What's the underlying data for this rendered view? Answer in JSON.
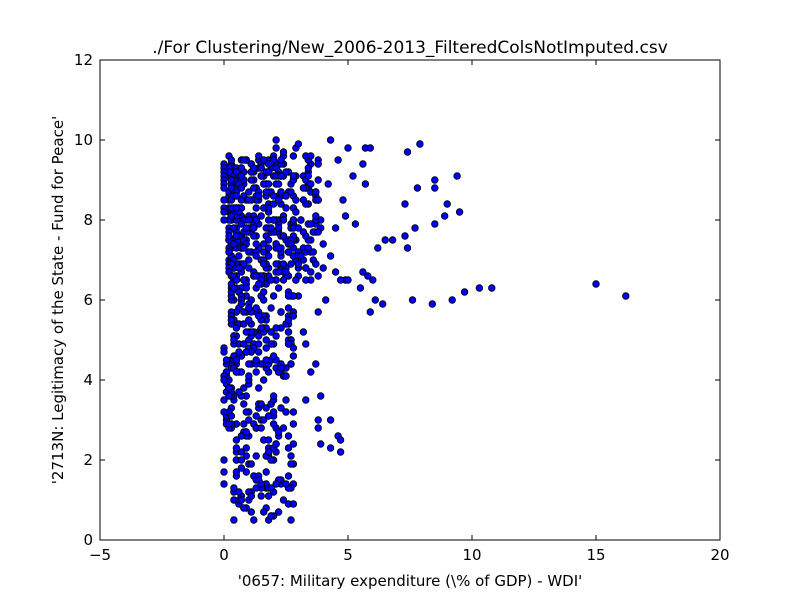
{
  "chart_data": {
    "type": "scatter",
    "title": "./For Clustering/New_2006-2013_FilteredColsNotImputed.csv",
    "xlabel": "'0657: Military expenditure  (\\% of GDP) - WDI'",
    "ylabel": "'2713N: Legitimacy of the State - Fund for Peace'",
    "xlim": [
      -5,
      20
    ],
    "ylim": [
      0,
      12
    ],
    "xticks": [
      "−5",
      "0",
      "5",
      "10",
      "15",
      "20"
    ],
    "yticks": [
      "0",
      "2",
      "4",
      "6",
      "8",
      "10",
      "12"
    ],
    "grid": false,
    "marker_color": "#0000ff",
    "marker_edge": "#000000",
    "outliers": [
      {
        "x": 15.0,
        "y": 6.4
      },
      {
        "x": 16.2,
        "y": 6.1
      },
      {
        "x": 10.8,
        "y": 6.3
      },
      {
        "x": 10.3,
        "y": 6.3
      },
      {
        "x": 9.7,
        "y": 6.2
      },
      {
        "x": 9.2,
        "y": 6.0
      },
      {
        "x": 8.4,
        "y": 5.9
      },
      {
        "x": 7.6,
        "y": 6.0
      },
      {
        "x": 6.4,
        "y": 5.9
      },
      {
        "x": 6.1,
        "y": 6.0
      },
      {
        "x": 5.9,
        "y": 5.7
      },
      {
        "x": 6.0,
        "y": 6.5
      },
      {
        "x": 5.6,
        "y": 6.7
      },
      {
        "x": 5.8,
        "y": 6.6
      },
      {
        "x": 5.5,
        "y": 6.3
      },
      {
        "x": 6.2,
        "y": 7.3
      },
      {
        "x": 6.5,
        "y": 7.5
      },
      {
        "x": 6.8,
        "y": 7.5
      },
      {
        "x": 7.4,
        "y": 7.3
      },
      {
        "x": 7.3,
        "y": 7.6
      },
      {
        "x": 7.7,
        "y": 7.8
      },
      {
        "x": 7.3,
        "y": 8.4
      },
      {
        "x": 7.8,
        "y": 8.8
      },
      {
        "x": 8.5,
        "y": 7.9
      },
      {
        "x": 8.9,
        "y": 8.1
      },
      {
        "x": 9.0,
        "y": 8.4
      },
      {
        "x": 9.5,
        "y": 8.2
      },
      {
        "x": 8.5,
        "y": 8.8
      },
      {
        "x": 8.5,
        "y": 9.0
      },
      {
        "x": 9.4,
        "y": 9.1
      },
      {
        "x": 7.9,
        "y": 9.9
      },
      {
        "x": 7.4,
        "y": 9.7
      },
      {
        "x": 5.7,
        "y": 9.8
      },
      {
        "x": 5.9,
        "y": 9.8
      },
      {
        "x": 5.0,
        "y": 9.8
      },
      {
        "x": 4.3,
        "y": 10.0
      },
      {
        "x": 5.6,
        "y": 9.4
      },
      {
        "x": 5.2,
        "y": 9.1
      },
      {
        "x": 5.7,
        "y": 8.9
      },
      {
        "x": 5.3,
        "y": 7.9
      },
      {
        "x": 4.9,
        "y": 6.5
      },
      {
        "x": 5.0,
        "y": 6.5
      },
      {
        "x": 4.7,
        "y": 6.5
      },
      {
        "x": 4.1,
        "y": 6.0
      },
      {
        "x": 3.8,
        "y": 5.7
      },
      {
        "x": 3.9,
        "y": 3.6
      },
      {
        "x": 3.8,
        "y": 3.0
      },
      {
        "x": 3.8,
        "y": 2.8
      },
      {
        "x": 4.3,
        "y": 3.0
      },
      {
        "x": 3.9,
        "y": 2.4
      },
      {
        "x": 4.3,
        "y": 2.3
      },
      {
        "x": 4.6,
        "y": 2.6
      },
      {
        "x": 4.7,
        "y": 2.5
      },
      {
        "x": 4.7,
        "y": 2.2
      },
      {
        "x": 3.3,
        "y": 3.5
      },
      {
        "x": 2.8,
        "y": 3.2
      },
      {
        "x": 3.5,
        "y": 4.2
      },
      {
        "x": 3.7,
        "y": 4.4
      },
      {
        "x": 3.3,
        "y": 4.9
      },
      {
        "x": 3.2,
        "y": 5.2
      },
      {
        "x": 2.8,
        "y": 2.9
      },
      {
        "x": 2.6,
        "y": 2.6
      },
      {
        "x": 2.4,
        "y": 2.8
      },
      {
        "x": 2.5,
        "y": 3.2
      },
      {
        "x": 2.7,
        "y": 1.9
      },
      {
        "x": 2.6,
        "y": 1.6
      },
      {
        "x": 2.5,
        "y": 1.4
      },
      {
        "x": 2.7,
        "y": 2.1
      },
      {
        "x": 2.1,
        "y": 9.8
      },
      {
        "x": 2.1,
        "y": 10.0
      },
      {
        "x": 2.4,
        "y": 9.7
      },
      {
        "x": 2.9,
        "y": 9.8
      },
      {
        "x": 3.0,
        "y": 9.9
      },
      {
        "x": 3.5,
        "y": 9.6
      },
      {
        "x": 3.8,
        "y": 9.4
      },
      {
        "x": 4.6,
        "y": 9.5
      },
      {
        "x": 4.8,
        "y": 8.5
      },
      {
        "x": 4.9,
        "y": 8.1
      },
      {
        "x": 4.5,
        "y": 7.8
      },
      {
        "x": 4.0,
        "y": 7.4
      },
      {
        "x": 4.3,
        "y": 7.1
      },
      {
        "x": 4.0,
        "y": 6.8
      },
      {
        "x": 4.5,
        "y": 6.7
      },
      {
        "x": 4.2,
        "y": 8.9
      },
      {
        "x": 0.0,
        "y": 9.4
      },
      {
        "x": 0.0,
        "y": 9.3
      },
      {
        "x": 0.0,
        "y": 9.2
      },
      {
        "x": 0.0,
        "y": 9.1
      },
      {
        "x": 0.0,
        "y": 9.0
      },
      {
        "x": 0.0,
        "y": 8.9
      },
      {
        "x": 0.0,
        "y": 8.8
      },
      {
        "x": 0.0,
        "y": 8.5
      },
      {
        "x": 0.0,
        "y": 8.3
      },
      {
        "x": 0.0,
        "y": 8.2
      },
      {
        "x": 0.0,
        "y": 8.0
      },
      {
        "x": 0.0,
        "y": 4.8
      },
      {
        "x": 0.0,
        "y": 4.7
      },
      {
        "x": 0.0,
        "y": 4.1
      },
      {
        "x": 0.0,
        "y": 4.0
      },
      {
        "x": 0.0,
        "y": 3.5
      },
      {
        "x": 0.0,
        "y": 3.2
      },
      {
        "x": 0.0,
        "y": 2.0
      },
      {
        "x": 0.0,
        "y": 1.7
      },
      {
        "x": 0.0,
        "y": 1.4
      }
    ],
    "clusters": [
      {
        "x_min": 0.2,
        "x_max": 3.9,
        "y_min": 6.5,
        "y_max": 9.6,
        "count": 420
      },
      {
        "x_min": 0.3,
        "x_max": 3.0,
        "y_min": 4.2,
        "y_max": 6.6,
        "count": 150
      },
      {
        "x_min": 0.1,
        "x_max": 2.6,
        "y_min": 2.8,
        "y_max": 4.6,
        "count": 90
      },
      {
        "x_min": 0.4,
        "x_max": 2.8,
        "y_min": 0.5,
        "y_max": 2.9,
        "count": 95
      }
    ]
  }
}
